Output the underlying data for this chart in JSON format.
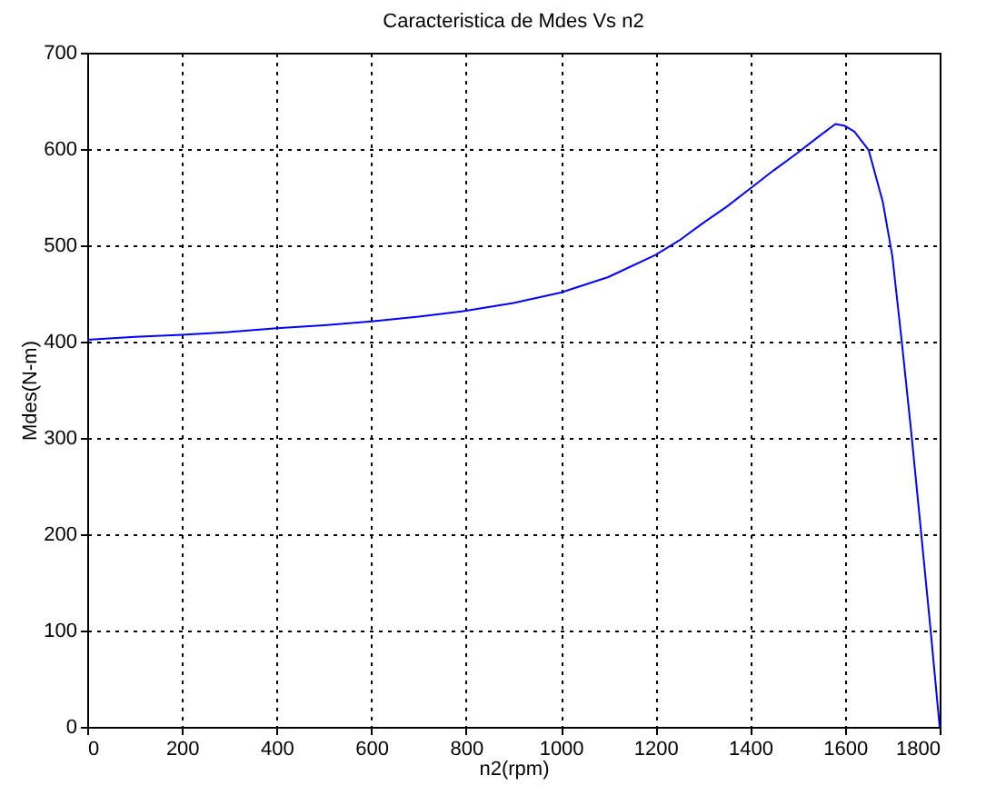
{
  "chart_data": {
    "type": "line",
    "title": "Caracteristica de Mdes Vs n2",
    "xlabel": "n2(rpm)",
    "ylabel": "Mdes(N-m)",
    "x": [
      0,
      100,
      200,
      300,
      400,
      500,
      600,
      700,
      800,
      900,
      1000,
      1100,
      1200,
      1250,
      1300,
      1350,
      1400,
      1450,
      1500,
      1550,
      1580,
      1600,
      1620,
      1650,
      1680,
      1700,
      1720,
      1740,
      1760,
      1780,
      1800
    ],
    "series": [
      {
        "color": "#0000ff",
        "values": [
          402,
          405,
          407,
          410,
          414,
          417,
          421,
          426,
          432,
          440,
          451,
          467,
          490,
          505,
          523,
          540,
          559,
          578,
          596,
          615,
          626,
          624,
          618,
          599,
          545,
          489,
          400,
          306,
          206,
          105,
          0
        ]
      }
    ],
    "xlim": [
      0,
      1800
    ],
    "xticks": [
      0,
      200,
      400,
      600,
      800,
      1000,
      1200,
      1400,
      1600,
      1800
    ],
    "ylim": [
      0,
      700
    ],
    "yticks": [
      0,
      100,
      200,
      300,
      400,
      500,
      600,
      700
    ],
    "grid": true,
    "line_style": "solid"
  }
}
